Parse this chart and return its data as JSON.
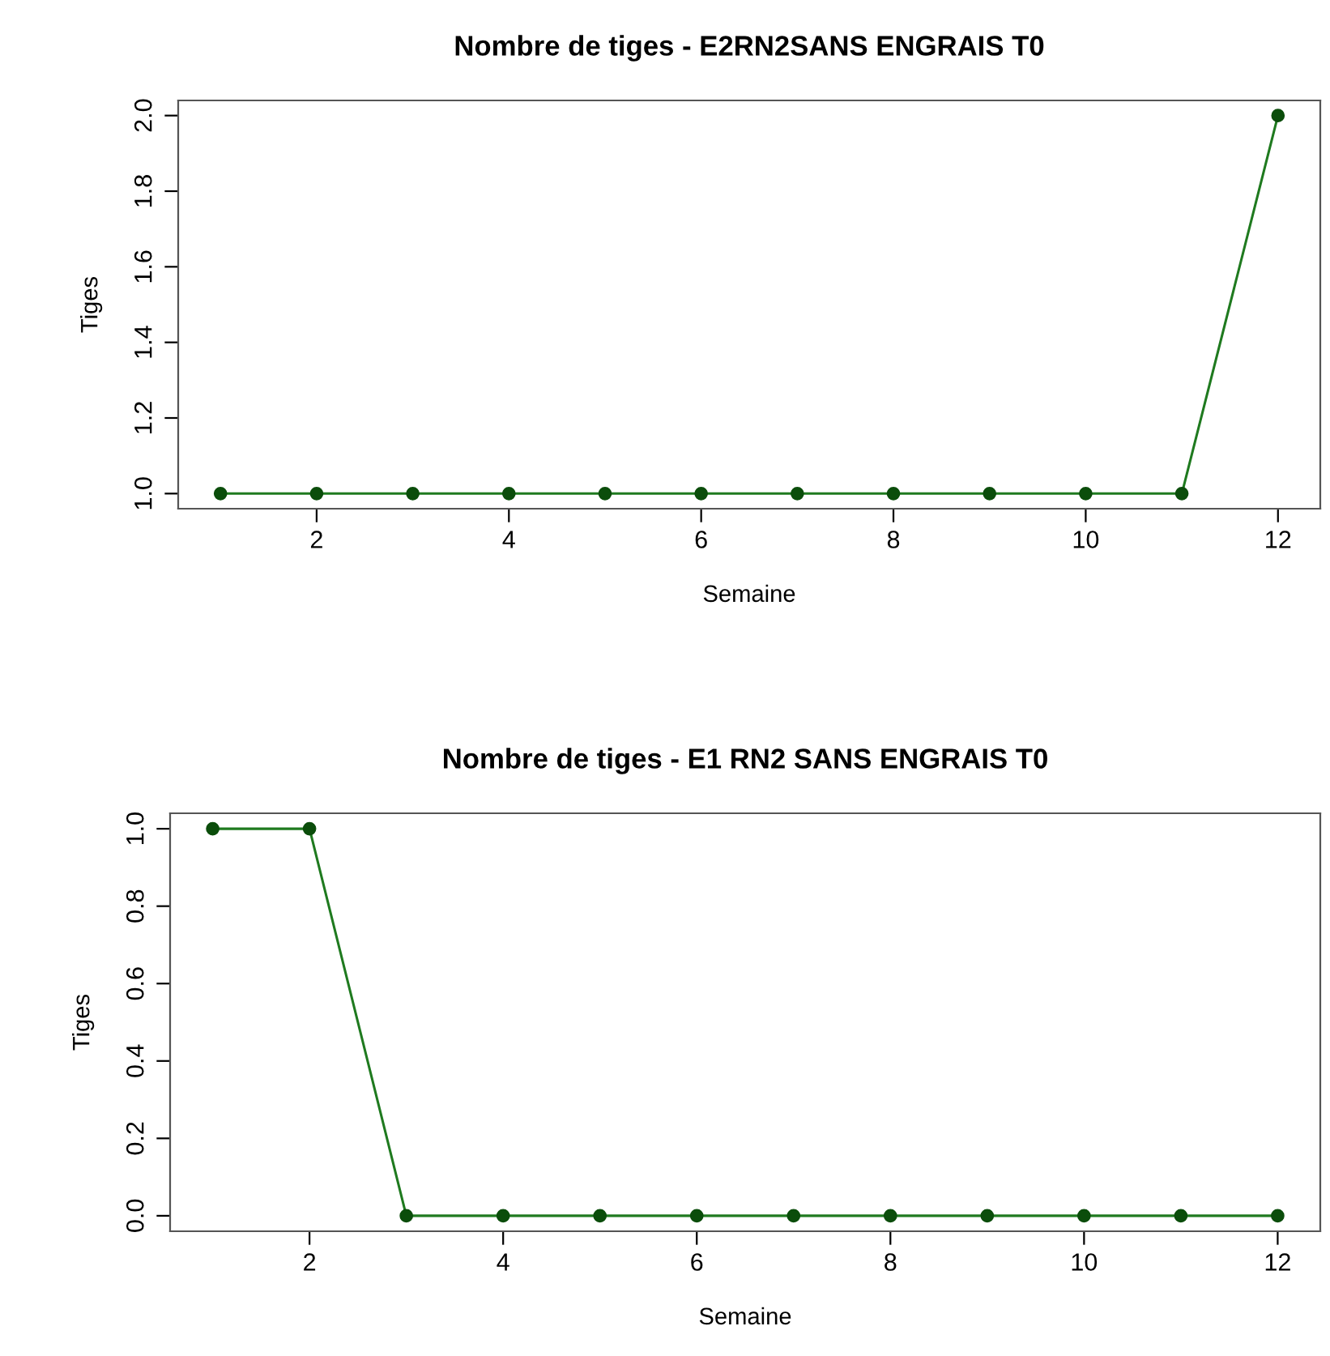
{
  "chart_data": [
    {
      "type": "line",
      "title": "Nombre de tiges - E2RN2SANS ENGRAIS T0",
      "xlabel": "Semaine",
      "ylabel": "Tiges",
      "x": [
        1,
        2,
        3,
        4,
        5,
        6,
        7,
        8,
        9,
        10,
        11,
        12
      ],
      "series": [
        {
          "color": "#1f7a1f",
          "values": [
            1,
            1,
            1,
            1,
            1,
            1,
            1,
            1,
            1,
            1,
            1,
            2
          ]
        }
      ],
      "xlim": [
        0.56,
        12.44
      ],
      "xticks": [
        2,
        4,
        6,
        8,
        10,
        12
      ],
      "ylim": [
        0.96,
        2.04
      ],
      "yticks": [
        {
          "value": 1,
          "label": "1.0"
        },
        1.2,
        1.4,
        1.6,
        1.8,
        {
          "value": 2,
          "label": "2.0"
        }
      ],
      "marker": "circle",
      "line_style": "solid",
      "grid": false,
      "legend": false
    },
    {
      "type": "line",
      "title": "Nombre de tiges - E1 RN2 SANS ENGRAIS T0",
      "xlabel": "Semaine",
      "ylabel": "Tiges",
      "x": [
        1,
        2,
        3,
        4,
        5,
        6,
        7,
        8,
        9,
        10,
        11,
        12
      ],
      "series": [
        {
          "color": "#1f7a1f",
          "values": [
            1,
            1,
            0,
            0,
            0,
            0,
            0,
            0,
            0,
            0,
            0,
            0
          ]
        }
      ],
      "xlim": [
        0.56,
        12.44
      ],
      "xticks": [
        2,
        4,
        6,
        8,
        10,
        12
      ],
      "ylim": [
        -0.04,
        1.04
      ],
      "yticks": [
        {
          "value": 0,
          "label": "0.0"
        },
        0.2,
        0.4,
        0.6,
        0.8,
        {
          "value": 1,
          "label": "1.0"
        }
      ],
      "marker": "circle",
      "line_style": "solid",
      "grid": false,
      "legend": false
    }
  ]
}
